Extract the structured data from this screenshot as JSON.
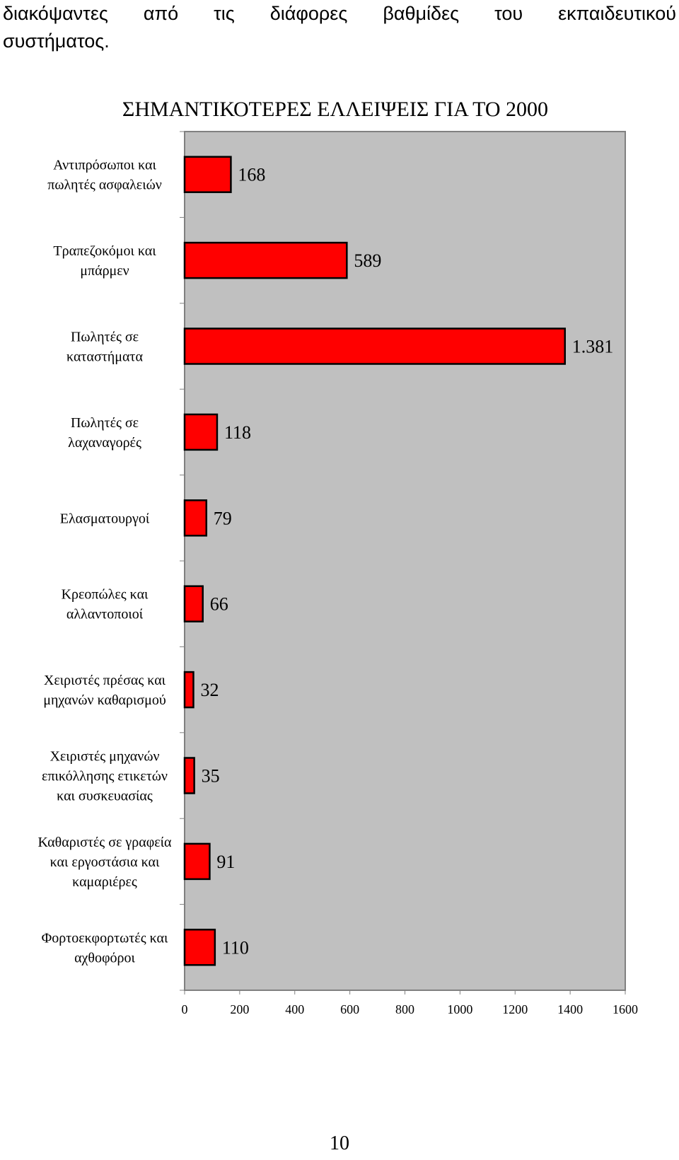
{
  "intro_text": {
    "line1": "διακόψαντες από τις διάφορες βαθμίδες του εκπαιδευτικού",
    "line2": "συστήματος."
  },
  "chart_data": {
    "type": "bar",
    "orientation": "horizontal",
    "title": "ΣΗΜΑΝΤΙΚΟΤΕΡΕΣ ΕΛΛΕΙΨΕΙΣ ΓΙΑ ΤΟ 2000",
    "categories": [
      [
        "Αντιπρόσωποι και",
        "πωλητές ασφαλειών"
      ],
      [
        "Τραπεζοκόμοι και",
        "μπάρμεν"
      ],
      [
        "Πωλητές σε",
        "καταστήματα"
      ],
      [
        "Πωλητές σε",
        "λαχαναγορές"
      ],
      [
        "Ελασματουργοί"
      ],
      [
        "Κρεοπώλες και",
        "αλλαντοποιοί"
      ],
      [
        "Χειριστές πρέσας και",
        "μηχανών καθαρισμού"
      ],
      [
        "Χειριστές μηχανών",
        "επικόλλησης ετικετών",
        "και συσκευασίας"
      ],
      [
        "Καθαριστές σε γραφεία",
        "και εργοστάσια και",
        "καμαριέρες"
      ],
      [
        "Φορτοεκφορτωτές και",
        "αχθοφόροι"
      ]
    ],
    "values": [
      168,
      589,
      1381,
      118,
      79,
      66,
      32,
      35,
      91,
      110
    ],
    "data_labels": [
      "168",
      "589",
      "1.381",
      "118",
      "79",
      "66",
      "32",
      "35",
      "91",
      "110"
    ],
    "xlim": [
      0,
      1600
    ],
    "xticks": [
      "0",
      "200",
      "400",
      "600",
      "800",
      "1000",
      "1200",
      "1400",
      "1600"
    ],
    "grid": false,
    "legend": "none",
    "colors": {
      "bar_fill": "#ff0000",
      "bar_stroke": "#000000",
      "plot_background": "#c0c0c0",
      "plot_border": "#808080"
    }
  },
  "page_number": "10"
}
